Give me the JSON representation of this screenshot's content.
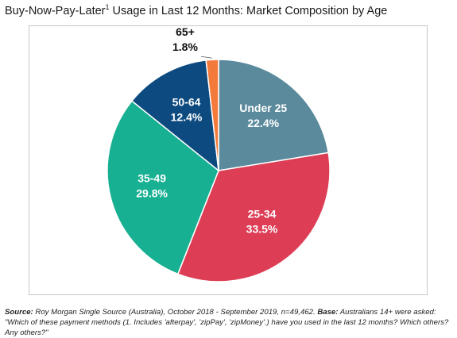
{
  "header": {
    "title_main": "Buy-Now-Pay-Later",
    "title_sup": "1",
    "title_rest": " Usage in Last 12 Months: Market Composition by Age"
  },
  "chart_data": {
    "type": "pie",
    "title": "Buy-Now-Pay-Later1 Usage in Last 12 Months: Market Composition by Age",
    "unit": "%",
    "slices": [
      {
        "label": "Under 25",
        "value": 22.4,
        "display": "22.4%",
        "color": "#5a8a9c"
      },
      {
        "label": "25-34",
        "value": 33.5,
        "display": "33.5%",
        "color": "#dd3e55"
      },
      {
        "label": "35-49",
        "value": 29.8,
        "display": "29.8%",
        "color": "#17b092"
      },
      {
        "label": "50-64",
        "value": 12.4,
        "display": "12.4%",
        "color": "#0d4a7f"
      },
      {
        "label": "65+",
        "value": 1.8,
        "display": "1.8%",
        "color": "#f47a3b"
      }
    ]
  },
  "footer": {
    "source_label": "Source:",
    "source_text": " Roy Morgan Single Source (Australia), October 2018 - September 2019, n=49,462. ",
    "base_label": "Base:",
    "base_text": " Australians 14+ were asked: \"Which of these payment methods (1. Includes 'afterpay', 'zipPay', 'zipMoney'.) have you used in the last 12 months? Which others? Any others?\""
  }
}
